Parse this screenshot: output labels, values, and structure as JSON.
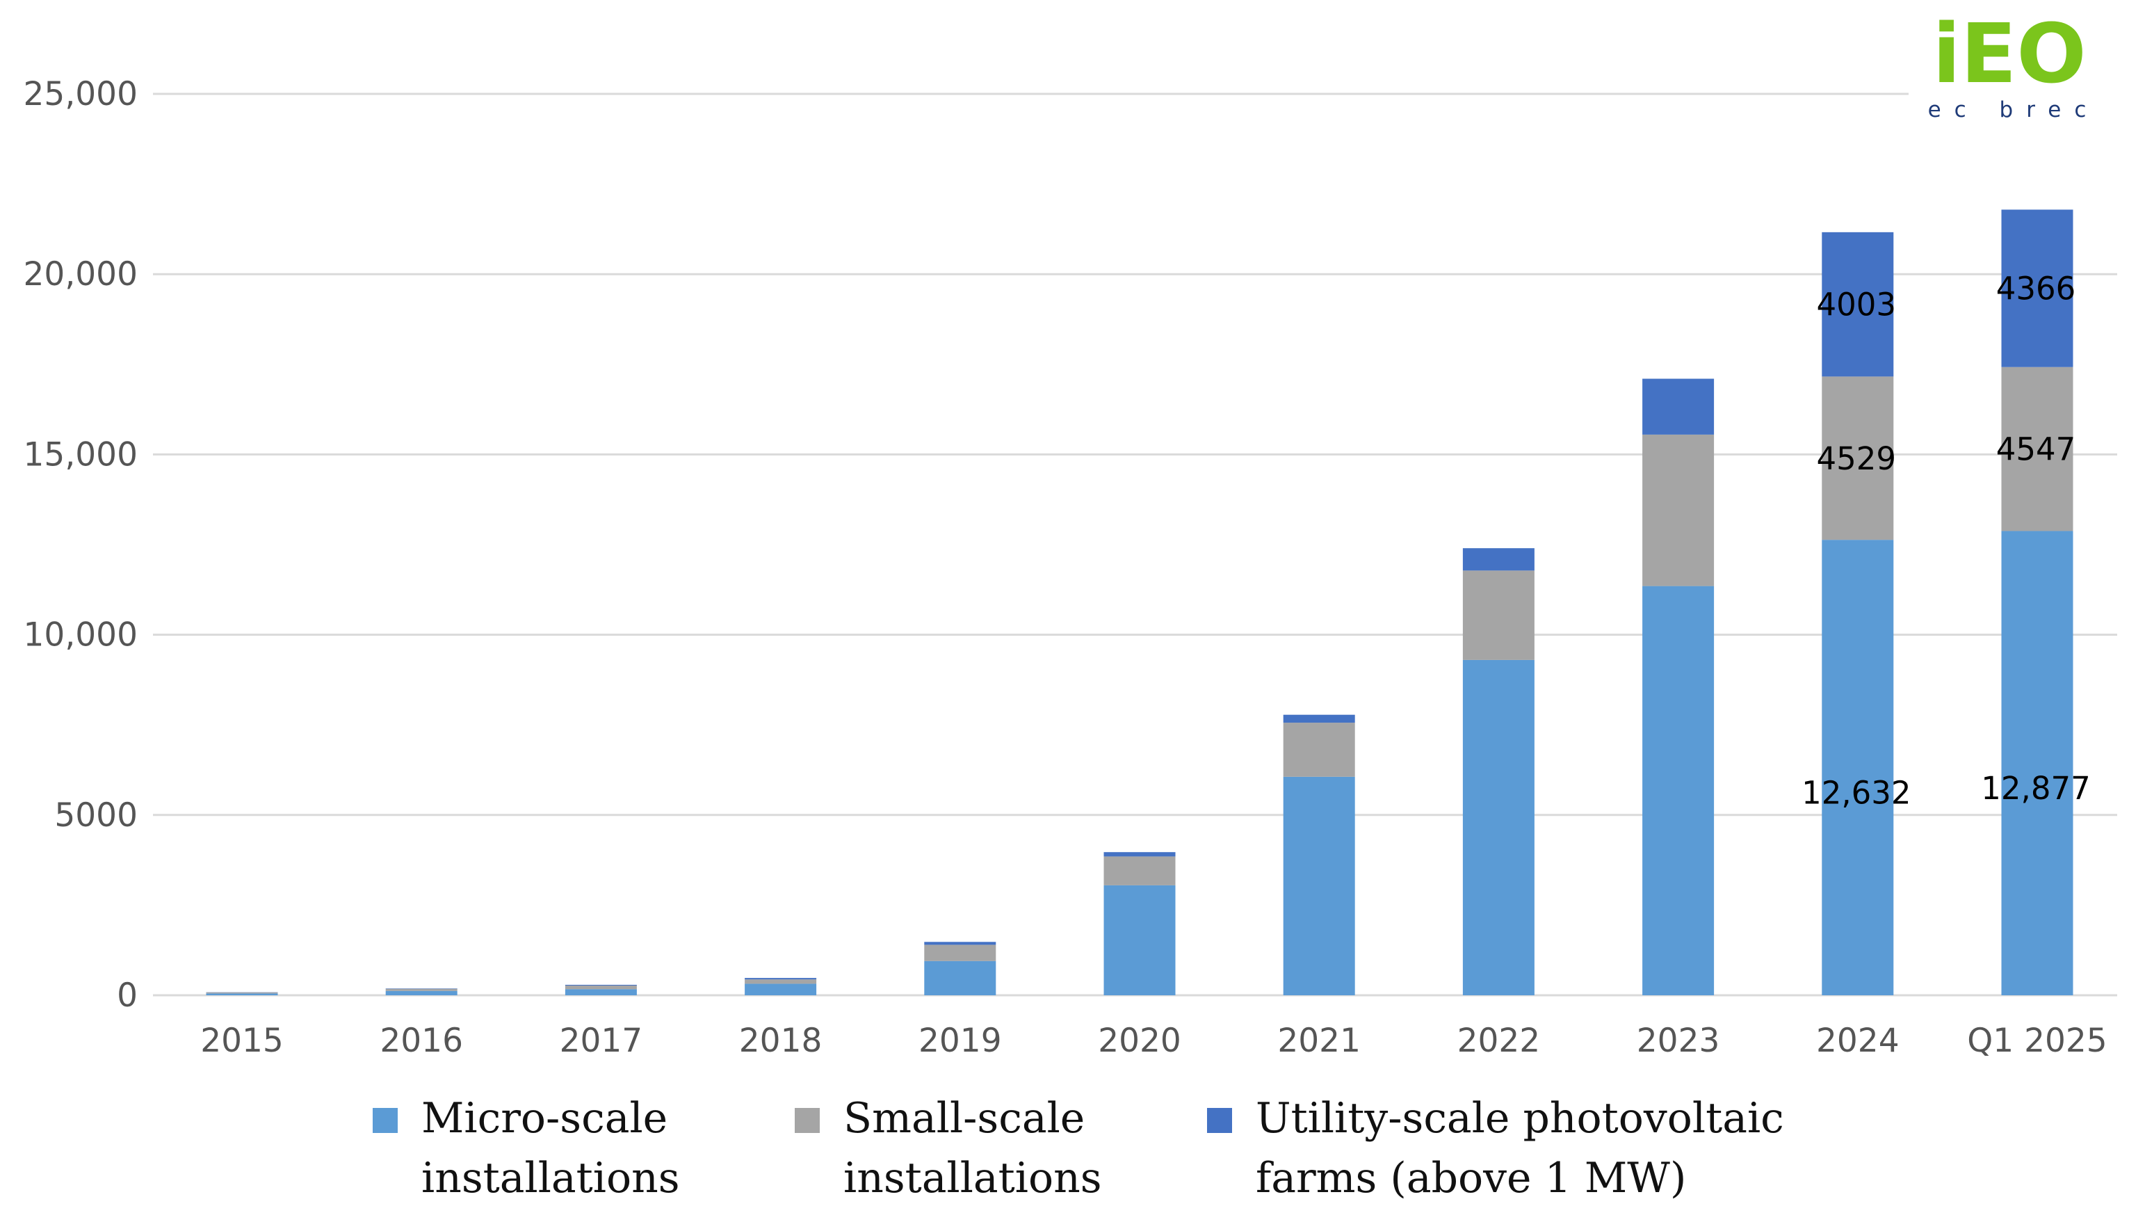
{
  "logo": {
    "main_text": "iEO",
    "sub_text": "ec brec",
    "green": "#7BC51C",
    "navy": "#1F3B78"
  },
  "colors": {
    "grid": "#DADADA",
    "micro": "#5B9BD5",
    "small": "#A5A5A5",
    "utility": "#4472C4"
  },
  "chart_data": {
    "type": "bar",
    "stacked": true,
    "title": "",
    "xlabel": "",
    "ylabel": "",
    "ylim": [
      0,
      25000
    ],
    "y_ticks": [
      0,
      5000,
      10000,
      15000,
      20000,
      25000
    ],
    "y_tick_labels": [
      "0",
      "5000",
      "10,000",
      "15,000",
      "20,000",
      "25,000"
    ],
    "grid": true,
    "legend_position": "bottom",
    "categories": [
      "2015",
      "2016",
      "2017",
      "2018",
      "2019",
      "2020",
      "2021",
      "2022",
      "2023",
      "2024",
      "Q1 2025"
    ],
    "series": [
      {
        "name": "Micro-scale installations",
        "legend_lines": [
          "Micro-scale",
          "installations"
        ],
        "values": [
          50,
          120,
          170,
          320,
          950,
          3050,
          6060,
          9300,
          11350,
          12632,
          12877
        ],
        "labels": [
          "",
          "",
          "",
          "",
          "",
          "",
          "",
          "",
          "",
          "12,632",
          "12,877"
        ]
      },
      {
        "name": "Small-scale installations",
        "legend_lines": [
          "Small-scale",
          "installations"
        ],
        "values": [
          30,
          60,
          100,
          120,
          450,
          800,
          1500,
          2480,
          4200,
          4529,
          4547
        ],
        "labels": [
          "",
          "",
          "",
          "",
          "",
          "",
          "",
          "",
          "",
          "4529",
          "4547"
        ]
      },
      {
        "name": "Utility-scale photovoltaic farms (above 1 MW)",
        "legend_lines": [
          "Utility-scale photovoltaic",
          "farms (above 1 MW)"
        ],
        "values": [
          5,
          10,
          20,
          40,
          80,
          120,
          220,
          620,
          1550,
          4003,
          4366
        ],
        "labels": [
          "",
          "",
          "",
          "",
          "",
          "",
          "",
          "",
          "",
          "4003",
          "4366"
        ]
      }
    ]
  }
}
